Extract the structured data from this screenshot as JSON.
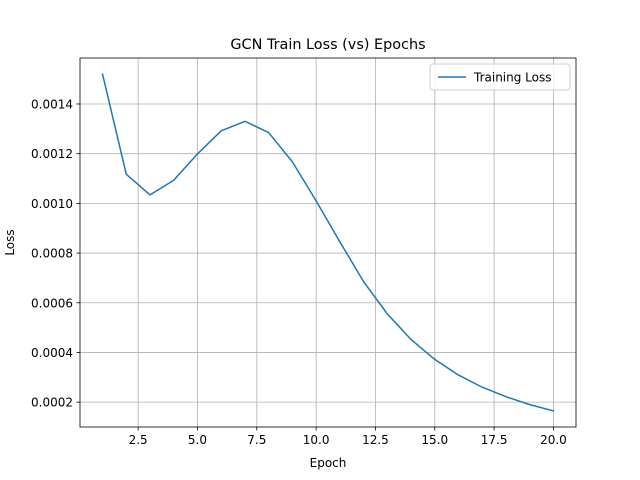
{
  "chart_data": {
    "type": "line",
    "title": "GCN Train Loss (vs) Epochs",
    "xlabel": "Epoch",
    "ylabel": "Loss",
    "xlim": [
      0.05,
      20.95
    ],
    "ylim": [
      0.0001,
      0.001585
    ],
    "xticks": [
      2.5,
      5.0,
      7.5,
      10.0,
      12.5,
      15.0,
      17.5,
      20.0
    ],
    "xtick_labels": [
      "2.5",
      "5.0",
      "7.5",
      "10.0",
      "12.5",
      "15.0",
      "17.5",
      "20.0"
    ],
    "yticks": [
      0.0002,
      0.0004,
      0.0006,
      0.0008,
      0.001,
      0.0012,
      0.0014
    ],
    "ytick_labels": [
      "0.0002",
      "0.0004",
      "0.0006",
      "0.0008",
      "0.0010",
      "0.0012",
      "0.0014"
    ],
    "grid": true,
    "legend_position": "top-right",
    "series": [
      {
        "name": "Training Loss",
        "color": "#1f77b4",
        "x": [
          1,
          2,
          3,
          4,
          5,
          6,
          7,
          8,
          9,
          10,
          11,
          12,
          13,
          14,
          15,
          16,
          17,
          18,
          19,
          20
        ],
        "y": [
          0.00152,
          0.001117,
          0.001034,
          0.001093,
          0.001199,
          0.001292,
          0.00133,
          0.001285,
          0.001167,
          0.00101,
          0.000845,
          0.000685,
          0.000555,
          0.000452,
          0.000372,
          0.000309,
          0.00026,
          0.000222,
          0.00019,
          0.000165
        ]
      }
    ]
  }
}
